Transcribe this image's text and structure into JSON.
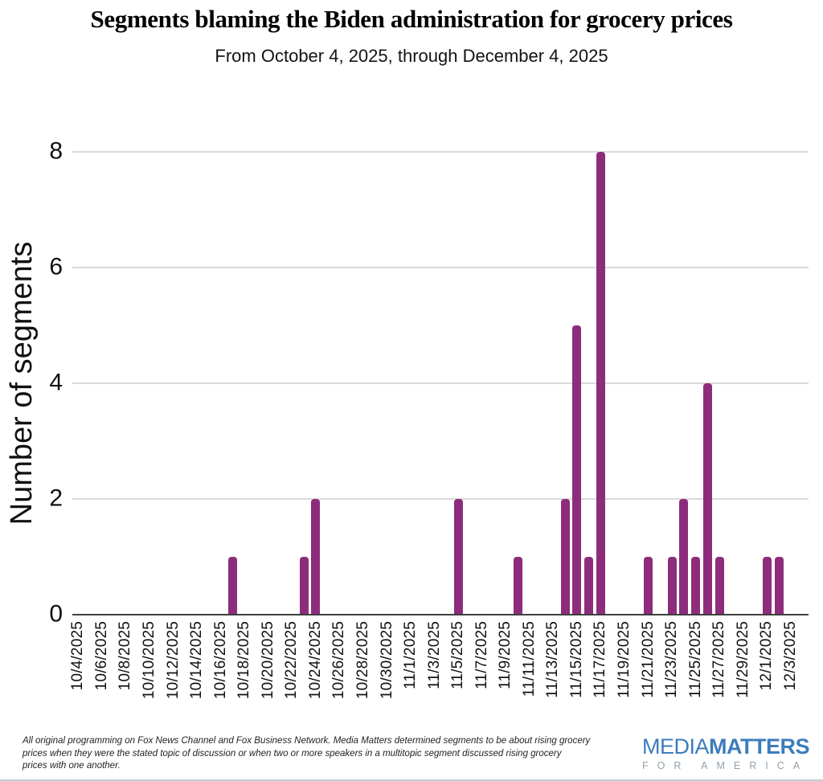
{
  "header": {
    "title": "Segments blaming the Biden administration for grocery prices",
    "subtitle": "From October 4, 2025, through December 4, 2025"
  },
  "chart_data": {
    "type": "bar",
    "title": "Segments blaming the Biden administration for grocery prices",
    "subtitle": "From October 4, 2025, through December 4, 2025",
    "xlabel": "",
    "ylabel": "Number of segments",
    "ylim": [
      0,
      8
    ],
    "yticks": [
      0,
      2,
      4,
      6,
      8
    ],
    "grid": "horizontal gridlines at 2,4,6,8",
    "x_start": "10/4/2025",
    "x_end": "12/4/2025",
    "x_tick_labels": [
      "10/4/2025",
      "10/6/2025",
      "10/8/2025",
      "10/10/2025",
      "10/12/2025",
      "10/14/2025",
      "10/16/2025",
      "10/18/2025",
      "10/20/2025",
      "10/22/2025",
      "10/24/2025",
      "10/26/2025",
      "10/28/2025",
      "10/30/2025",
      "11/1/2025",
      "11/3/2025",
      "11/5/2025",
      "11/7/2025",
      "11/9/2025",
      "11/11/2025",
      "11/13/2025",
      "11/15/2025",
      "11/17/2025",
      "11/19/2025",
      "11/21/2025",
      "11/23/2025",
      "11/25/2025",
      "11/27/2025",
      "11/29/2025",
      "12/1/2025",
      "12/3/2025"
    ],
    "bars": [
      {
        "date": "10/17/2025",
        "value": 1
      },
      {
        "date": "10/23/2025",
        "value": 1
      },
      {
        "date": "10/24/2025",
        "value": 2
      },
      {
        "date": "11/5/2025",
        "value": 2
      },
      {
        "date": "11/10/2025",
        "value": 1
      },
      {
        "date": "11/14/2025",
        "value": 2
      },
      {
        "date": "11/15/2025",
        "value": 5
      },
      {
        "date": "11/16/2025",
        "value": 1
      },
      {
        "date": "11/17/2025",
        "value": 8
      },
      {
        "date": "11/21/2025",
        "value": 1
      },
      {
        "date": "11/23/2025",
        "value": 1
      },
      {
        "date": "11/24/2025",
        "value": 2
      },
      {
        "date": "11/25/2025",
        "value": 1
      },
      {
        "date": "11/26/2025",
        "value": 4
      },
      {
        "date": "11/27/2025",
        "value": 1
      },
      {
        "date": "12/1/2025",
        "value": 1
      },
      {
        "date": "12/2/2025",
        "value": 1
      }
    ]
  },
  "footer": {
    "note": "All original programming on Fox News Channel and Fox Business Network. Media Matters determined segments to be about rising grocery prices when they were the stated topic of discussion or when two or more speakers in a multitopic segment discussed rising grocery prices with one another.",
    "note_lines": [
      "All original programming on Fox News Channel and Fox Business Network. Media Matters determined segments to be about rising grocery",
      "prices when they were the stated topic of discussion or when two or more speakers in a multitopic segment discussed rising grocery",
      "prices with one another."
    ],
    "logo": {
      "media": "MEDIA",
      "matters": "MATTERS",
      "tagline": "F O R   A M E R I C A",
      "tagline_text": "FOR AMERICA"
    }
  },
  "colors": {
    "bar": "#8e2c7c",
    "gridline": "#dadada",
    "axis": "#3f3f3f",
    "text": "#111111",
    "logo_blue": "#3d7cbc",
    "logo_gray": "#93a0aa",
    "bottom_rule": "#c2cfdb"
  }
}
